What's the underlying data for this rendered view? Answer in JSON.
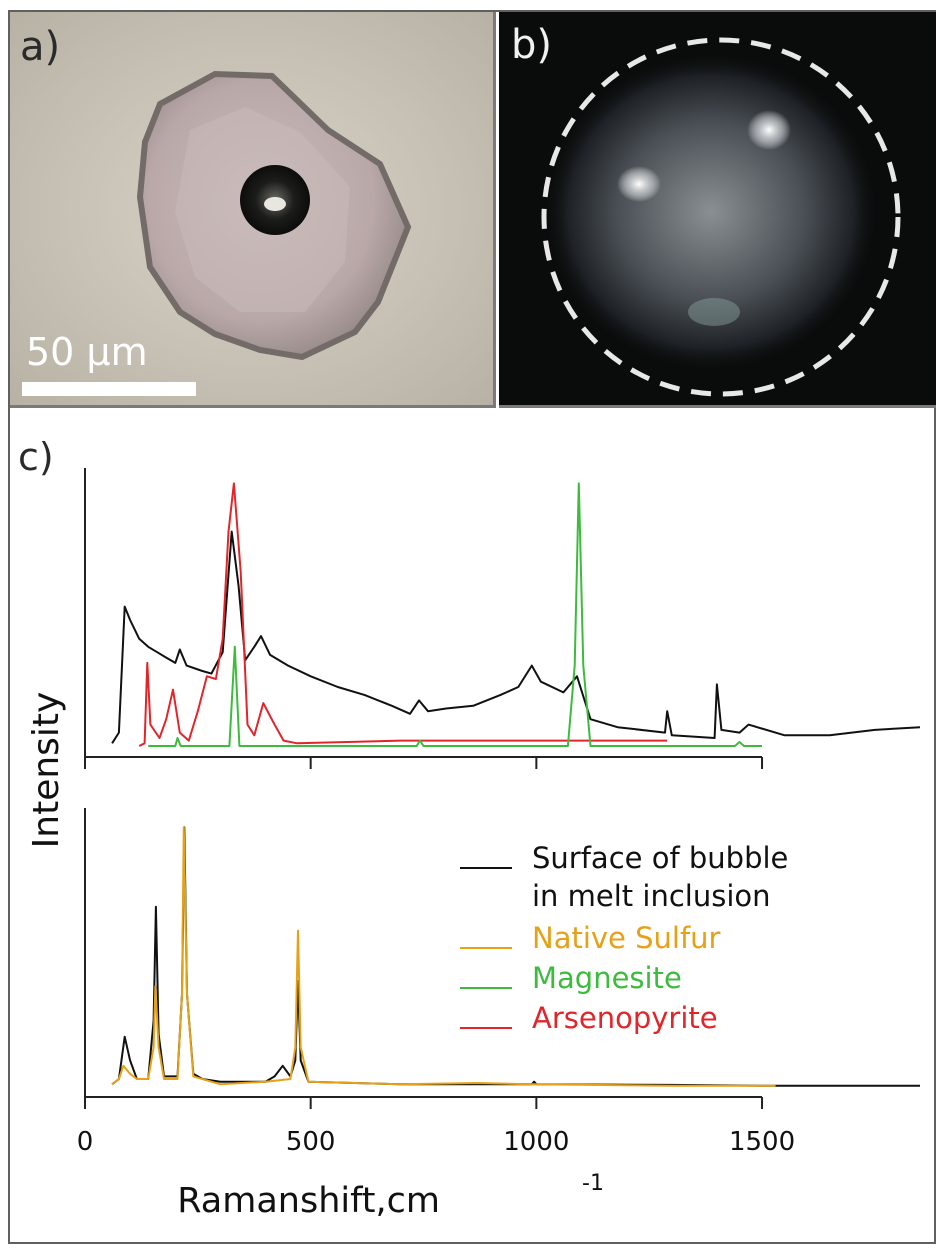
{
  "panels": {
    "a_label": "a)",
    "b_label": "b)",
    "c_label": "c)",
    "scale_bar_text": "50 µm"
  },
  "colors": {
    "bubble_surface": "#111111",
    "native_sulfur": "#e6a117",
    "magnesite": "#3dbb3d",
    "arsenopyrite": "#e0262b"
  },
  "chart_data": {
    "type": "line",
    "xlabel": "Ramanshift,cm",
    "xlabel_sup": "-1",
    "ylabel": "Intensity",
    "xlim": [
      0,
      1850
    ],
    "x_ticks": [
      0,
      500,
      1000,
      1500
    ],
    "x_tick_labels": [
      "0",
      "500",
      "1000",
      "1500"
    ],
    "legend": [
      {
        "key": "bubble",
        "label_lines": [
          "Surface of bubble",
          "in melt inclusion"
        ],
        "color": "#111111"
      },
      {
        "key": "sulfur",
        "label_lines": [
          "Native Sulfur"
        ],
        "color": "#e6a117"
      },
      {
        "key": "magnesite",
        "label_lines": [
          "Magnesite"
        ],
        "color": "#3dbb3d"
      },
      {
        "key": "arsenopyrite",
        "label_lines": [
          "Arsenopyrite"
        ],
        "color": "#e0262b"
      }
    ],
    "subplots": [
      {
        "name": "top",
        "series": [
          {
            "key": "bubble",
            "color": "#111111",
            "points": [
              [
                60,
                0.01
              ],
              [
                75,
                0.05
              ],
              [
                88,
                0.52
              ],
              [
                100,
                0.47
              ],
              [
                120,
                0.4
              ],
              [
                140,
                0.37
              ],
              [
                160,
                0.35
              ],
              [
                180,
                0.33
              ],
              [
                200,
                0.31
              ],
              [
                210,
                0.36
              ],
              [
                225,
                0.3
              ],
              [
                260,
                0.28
              ],
              [
                280,
                0.27
              ],
              [
                305,
                0.35
              ],
              [
                325,
                0.8
              ],
              [
                340,
                0.6
              ],
              [
                355,
                0.32
              ],
              [
                375,
                0.37
              ],
              [
                390,
                0.41
              ],
              [
                410,
                0.34
              ],
              [
                450,
                0.3
              ],
              [
                500,
                0.26
              ],
              [
                560,
                0.22
              ],
              [
                620,
                0.19
              ],
              [
                680,
                0.15
              ],
              [
                720,
                0.12
              ],
              [
                740,
                0.17
              ],
              [
                760,
                0.13
              ],
              [
                800,
                0.14
              ],
              [
                860,
                0.15
              ],
              [
                920,
                0.19
              ],
              [
                960,
                0.22
              ],
              [
                990,
                0.3
              ],
              [
                1010,
                0.24
              ],
              [
                1060,
                0.2
              ],
              [
                1090,
                0.26
              ],
              [
                1120,
                0.1
              ],
              [
                1180,
                0.07
              ],
              [
                1285,
                0.05
              ],
              [
                1290,
                0.13
              ],
              [
                1300,
                0.04
              ],
              [
                1395,
                0.03
              ],
              [
                1400,
                0.23
              ],
              [
                1410,
                0.06
              ],
              [
                1450,
                0.05
              ],
              [
                1470,
                0.08
              ],
              [
                1550,
                0.04
              ],
              [
                1650,
                0.04
              ],
              [
                1750,
                0.06
              ],
              [
                1850,
                0.07
              ]
            ]
          },
          {
            "key": "arsenopyrite",
            "color": "#e0262b",
            "points": [
              [
                120,
                0.0
              ],
              [
                132,
                0.01
              ],
              [
                138,
                0.31
              ],
              [
                145,
                0.08
              ],
              [
                165,
                0.03
              ],
              [
                180,
                0.1
              ],
              [
                195,
                0.21
              ],
              [
                210,
                0.05
              ],
              [
                230,
                0.02
              ],
              [
                250,
                0.13
              ],
              [
                270,
                0.26
              ],
              [
                290,
                0.25
              ],
              [
                305,
                0.4
              ],
              [
                318,
                0.8
              ],
              [
                330,
                0.98
              ],
              [
                345,
                0.65
              ],
              [
                360,
                0.08
              ],
              [
                375,
                0.04
              ],
              [
                395,
                0.16
              ],
              [
                420,
                0.08
              ],
              [
                440,
                0.02
              ],
              [
                470,
                0.01
              ],
              [
                700,
                0.02
              ],
              [
                900,
                0.02
              ],
              [
                1100,
                0.02
              ],
              [
                1290,
                0.02
              ]
            ]
          },
          {
            "key": "magnesite",
            "color": "#3dbb3d",
            "points": [
              [
                140,
                0.0
              ],
              [
                200,
                0.0
              ],
              [
                205,
                0.03
              ],
              [
                212,
                0.0
              ],
              [
                320,
                0.0
              ],
              [
                332,
                0.37
              ],
              [
                342,
                0.0
              ],
              [
                735,
                0.0
              ],
              [
                742,
                0.02
              ],
              [
                750,
                0.0
              ],
              [
                1070,
                0.0
              ],
              [
                1085,
                0.3
              ],
              [
                1094,
                0.98
              ],
              [
                1104,
                0.3
              ],
              [
                1120,
                0.0
              ],
              [
                1440,
                0.0
              ],
              [
                1450,
                0.015
              ],
              [
                1460,
                0.0
              ],
              [
                1500,
                0.0
              ]
            ]
          }
        ]
      },
      {
        "name": "bottom",
        "series": [
          {
            "key": "bubble",
            "color": "#111111",
            "points": [
              [
                60,
                0.01
              ],
              [
                75,
                0.03
              ],
              [
                88,
                0.19
              ],
              [
                100,
                0.1
              ],
              [
                115,
                0.03
              ],
              [
                140,
                0.03
              ],
              [
                152,
                0.25
              ],
              [
                157,
                0.68
              ],
              [
                163,
                0.2
              ],
              [
                175,
                0.04
              ],
              [
                205,
                0.04
              ],
              [
                215,
                0.35
              ],
              [
                220,
                0.98
              ],
              [
                226,
                0.35
              ],
              [
                240,
                0.05
              ],
              [
                260,
                0.03
              ],
              [
                300,
                0.02
              ],
              [
                400,
                0.02
              ],
              [
                420,
                0.04
              ],
              [
                438,
                0.08
              ],
              [
                455,
                0.04
              ],
              [
                466,
                0.1
              ],
              [
                472,
                0.4
              ],
              [
                478,
                0.1
              ],
              [
                495,
                0.02
              ],
              [
                700,
                0.01
              ],
              [
                860,
                0.01
              ],
              [
                990,
                0.01
              ],
              [
                995,
                0.02
              ],
              [
                1000,
                0.01
              ],
              [
                1300,
                0.008
              ],
              [
                1500,
                0.005
              ],
              [
                1850,
                0.005
              ]
            ]
          },
          {
            "key": "sulfur",
            "color": "#e6a117",
            "points": [
              [
                60,
                0.01
              ],
              [
                75,
                0.03
              ],
              [
                85,
                0.08
              ],
              [
                100,
                0.05
              ],
              [
                115,
                0.03
              ],
              [
                140,
                0.03
              ],
              [
                152,
                0.15
              ],
              [
                156,
                0.38
              ],
              [
                163,
                0.15
              ],
              [
                175,
                0.03
              ],
              [
                205,
                0.03
              ],
              [
                215,
                0.35
              ],
              [
                219,
                0.98
              ],
              [
                226,
                0.35
              ],
              [
                240,
                0.04
              ],
              [
                300,
                0.01
              ],
              [
                400,
                0.02
              ],
              [
                455,
                0.03
              ],
              [
                466,
                0.15
              ],
              [
                472,
                0.59
              ],
              [
                478,
                0.15
              ],
              [
                495,
                0.02
              ],
              [
                700,
                0.01
              ],
              [
                870,
                0.015
              ],
              [
                990,
                0.01
              ],
              [
                1300,
                0.005
              ],
              [
                1530,
                0.005
              ]
            ]
          }
        ]
      }
    ]
  }
}
